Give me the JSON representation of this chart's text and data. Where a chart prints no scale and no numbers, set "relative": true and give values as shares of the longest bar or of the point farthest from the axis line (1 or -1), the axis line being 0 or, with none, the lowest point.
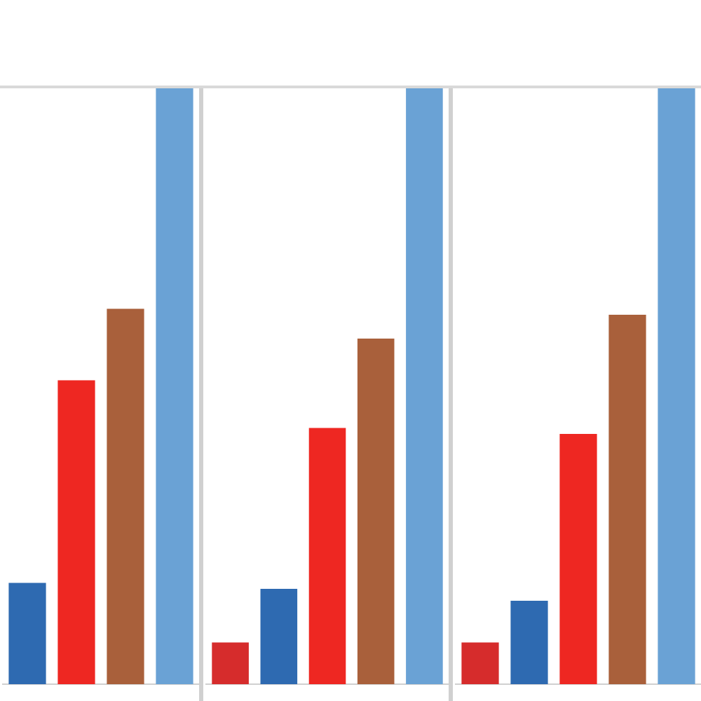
{
  "chart_data": [
    {
      "type": "bar",
      "relative": true,
      "tick_labels": false,
      "categories": [
        null,
        null,
        null,
        null
      ],
      "values": [
        0.17,
        0.51,
        0.63,
        1
      ],
      "colors": [
        "#2e6ab1",
        "#ee2722",
        "#a9603b",
        "#6aa2d5"
      ]
    },
    {
      "type": "bar",
      "relative": true,
      "tick_labels": false,
      "categories": [
        null,
        null,
        null,
        null,
        null
      ],
      "values": [
        0.07,
        0.16,
        0.43,
        0.58,
        1
      ],
      "colors": [
        "#d62c2c",
        "#2e6ab1",
        "#ee2722",
        "#a9603b",
        "#6aa2d5"
      ]
    },
    {
      "type": "bar",
      "relative": true,
      "tick_labels": false,
      "categories": [
        null,
        null,
        null,
        null,
        null
      ],
      "values": [
        0.07,
        0.14,
        0.42,
        0.62,
        1
      ],
      "colors": [
        "#d62c2c",
        "#2e6ab1",
        "#ee2722",
        "#a9603b",
        "#6aa2d5"
      ]
    }
  ]
}
